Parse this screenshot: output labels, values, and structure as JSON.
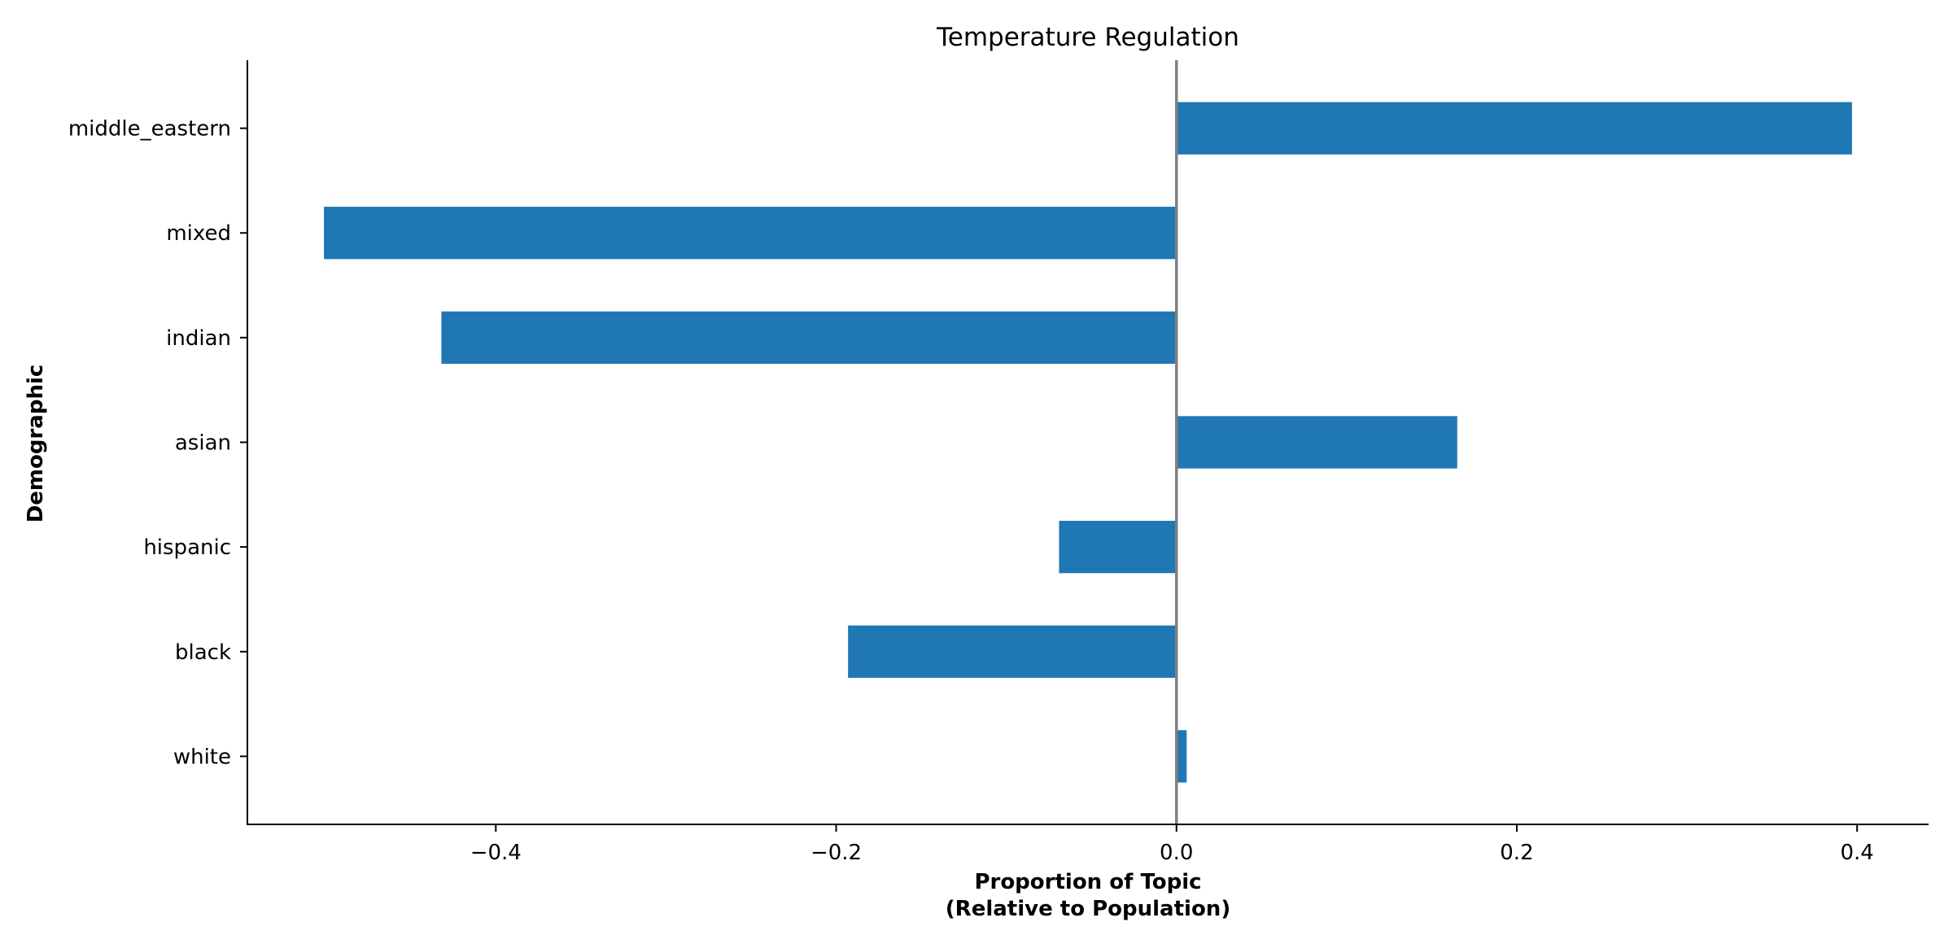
{
  "chart_data": {
    "type": "bar",
    "orientation": "horizontal",
    "title": "Temperature Regulation",
    "xlabel_lines": [
      "Proportion of Topic",
      "(Relative to Population)"
    ],
    "ylabel": "Demographic",
    "categories": [
      "white",
      "black",
      "hispanic",
      "asian",
      "indian",
      "mixed",
      "middle_eastern"
    ],
    "values": [
      0.006,
      -0.193,
      -0.069,
      0.165,
      -0.432,
      -0.501,
      0.397
    ],
    "xlim": [
      -0.546,
      0.442
    ],
    "xticks": [
      -0.4,
      -0.2,
      0.0,
      0.2,
      0.4
    ],
    "xtick_labels": [
      "−0.4",
      "−0.2",
      "0.0",
      "0.2",
      "0.4"
    ],
    "reference_line": 0.0,
    "grid": false,
    "colors": {
      "bar": "#1f77b4",
      "reference_line": "#808080"
    }
  }
}
